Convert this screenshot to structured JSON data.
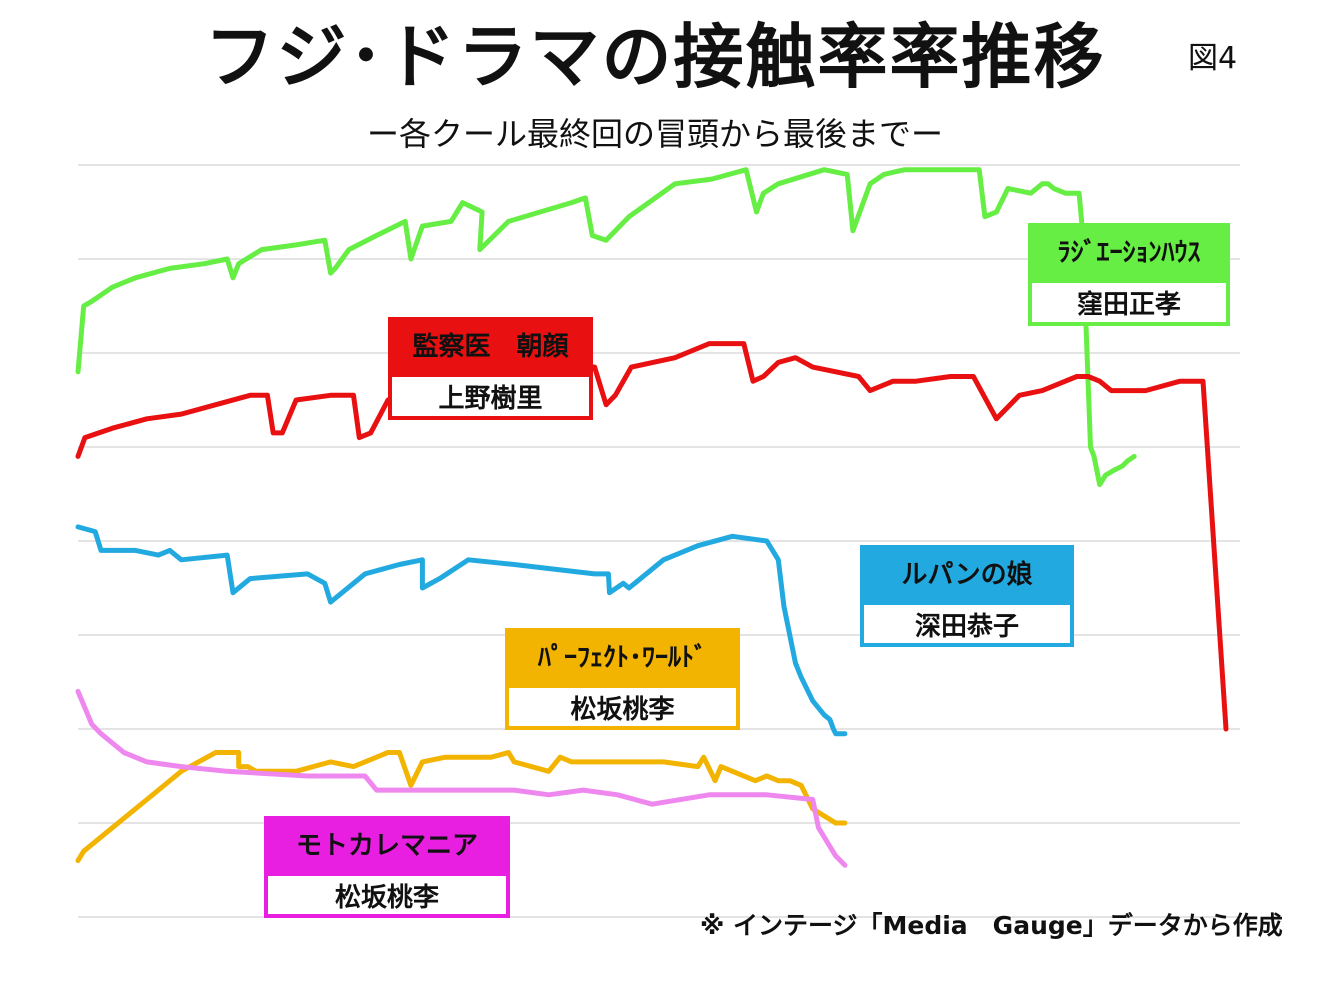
{
  "title": "フジ･ドラマの接触率率推移",
  "subtitle": "ー各クール最終回の冒頭から最後までー",
  "figure_label": "図4",
  "source_note": "※ インテージ「Media　Gauge」データから作成",
  "colors": {
    "green": "#66ee44",
    "red": "#e81010",
    "blue": "#22aae0",
    "orange": "#f2b400",
    "pink": "#ee88ee",
    "magenta": "#e81ee0",
    "grid": "#dcdcdc"
  },
  "legend": {
    "green": {
      "show": "ﾗｼﾞｴｰｼｮﾝﾊｳｽ",
      "actor": "窪田正孝"
    },
    "red": {
      "show": "監察医　朝顔",
      "actor": "上野樹里"
    },
    "blue": {
      "show": "ルパンの娘",
      "actor": "深田恭子"
    },
    "orange": {
      "show": "ﾊﾟｰﾌｪｸﾄ･ﾜｰﾙﾄﾞ",
      "actor": "松坂桃李"
    },
    "pink": {
      "show": "モトカレマニア",
      "actor": "松坂桃李"
    }
  },
  "chart_data": {
    "type": "line",
    "title": "フジ･ドラマの接触率率推移",
    "subtitle": "ー各クール最終回の冒頭から最後までー",
    "xlabel": "",
    "ylabel": "",
    "ylim": [
      0,
      8
    ],
    "xlim": [
      0,
      1
    ],
    "grid": true,
    "legend_placement": "inline",
    "series": [
      {
        "name": "ﾗｼﾞｴｰｼｮﾝﾊｳｽ",
        "color": "#66ee44",
        "x": [
          0.0,
          0.005,
          0.012,
          0.03,
          0.05,
          0.08,
          0.11,
          0.13,
          0.135,
          0.14,
          0.16,
          0.19,
          0.215,
          0.22,
          0.224,
          0.236,
          0.26,
          0.285,
          0.29,
          0.3,
          0.325,
          0.335,
          0.352,
          0.35,
          0.375,
          0.43,
          0.442,
          0.448,
          0.46,
          0.48,
          0.52,
          0.552,
          0.582,
          0.591,
          0.597,
          0.61,
          0.65,
          0.67,
          0.675,
          0.69,
          0.702,
          0.72,
          0.75,
          0.76,
          0.785,
          0.79,
          0.8,
          0.81,
          0.83,
          0.84,
          0.845,
          0.85,
          0.86,
          0.872,
          0.875,
          0.882,
          0.885,
          0.89,
          0.895,
          0.902,
          0.91,
          0.914,
          0.92
        ],
        "y": [
          5.8,
          6.5,
          6.55,
          6.7,
          6.8,
          6.9,
          6.95,
          7.0,
          6.8,
          6.95,
          7.1,
          7.15,
          7.2,
          6.85,
          6.9,
          7.1,
          7.25,
          7.4,
          7.0,
          7.35,
          7.4,
          7.6,
          7.5,
          7.1,
          7.4,
          7.6,
          7.65,
          7.25,
          7.2,
          7.45,
          7.8,
          7.85,
          7.95,
          7.5,
          7.7,
          7.8,
          7.95,
          7.9,
          7.3,
          7.8,
          7.9,
          7.95,
          7.95,
          7.95,
          7.95,
          7.45,
          7.5,
          7.75,
          7.7,
          7.8,
          7.8,
          7.75,
          7.7,
          7.7,
          7.3,
          5.0,
          4.9,
          4.6,
          4.7,
          4.75,
          4.8,
          4.85,
          4.9
        ]
      },
      {
        "name": "監察医　朝顔",
        "color": "#e81010",
        "x": [
          0.0,
          0.006,
          0.03,
          0.06,
          0.09,
          0.12,
          0.15,
          0.165,
          0.17,
          0.178,
          0.19,
          0.22,
          0.24,
          0.245,
          0.255,
          0.27,
          0.29,
          0.33,
          0.37,
          0.38,
          0.384,
          0.392,
          0.41,
          0.45,
          0.46,
          0.468,
          0.482,
          0.52,
          0.53,
          0.55,
          0.58,
          0.588,
          0.597,
          0.61,
          0.625,
          0.64,
          0.68,
          0.68,
          0.69,
          0.71,
          0.73,
          0.76,
          0.78,
          0.8,
          0.82,
          0.84,
          0.86,
          0.87,
          0.88,
          0.89,
          0.9,
          0.93,
          0.96,
          0.98,
          1.0
        ],
        "y": [
          4.9,
          5.1,
          5.2,
          5.3,
          5.35,
          5.45,
          5.55,
          5.55,
          5.15,
          5.15,
          5.5,
          5.55,
          5.55,
          5.1,
          5.15,
          5.5,
          5.55,
          5.85,
          5.85,
          5.35,
          5.4,
          5.75,
          5.9,
          5.85,
          5.45,
          5.55,
          5.85,
          5.95,
          6.0,
          6.1,
          6.1,
          5.7,
          5.75,
          5.9,
          5.95,
          5.85,
          5.75,
          5.75,
          5.6,
          5.7,
          5.7,
          5.75,
          5.75,
          5.3,
          5.55,
          5.6,
          5.7,
          5.75,
          5.75,
          5.7,
          5.6,
          5.6,
          5.7,
          5.7,
          2.0
        ]
      },
      {
        "name": "ルパンの娘",
        "color": "#22aae0",
        "x": [
          0.0,
          0.015,
          0.02,
          0.05,
          0.07,
          0.08,
          0.09,
          0.13,
          0.135,
          0.15,
          0.2,
          0.215,
          0.22,
          0.25,
          0.28,
          0.3,
          0.3,
          0.315,
          0.34,
          0.38,
          0.45,
          0.462,
          0.463,
          0.475,
          0.48,
          0.51,
          0.54,
          0.57,
          0.6,
          0.61,
          0.615,
          0.625,
          0.63,
          0.64,
          0.65,
          0.655,
          0.658,
          0.66,
          0.665,
          0.668
        ],
        "y": [
          4.15,
          4.1,
          3.9,
          3.9,
          3.85,
          3.9,
          3.8,
          3.85,
          3.45,
          3.6,
          3.65,
          3.55,
          3.35,
          3.65,
          3.75,
          3.8,
          3.5,
          3.6,
          3.8,
          3.75,
          3.65,
          3.65,
          3.45,
          3.55,
          3.5,
          3.8,
          3.95,
          4.05,
          4.0,
          3.8,
          3.3,
          2.7,
          2.55,
          2.3,
          2.15,
          2.1,
          2.0,
          1.95,
          1.95,
          1.95
        ]
      },
      {
        "name": "ﾊﾟｰﾌｪｸﾄ･ﾜｰﾙﾄﾞ",
        "color": "#f2b400",
        "x": [
          0.0,
          0.005,
          0.03,
          0.06,
          0.09,
          0.12,
          0.14,
          0.14,
          0.148,
          0.155,
          0.19,
          0.22,
          0.24,
          0.25,
          0.27,
          0.28,
          0.29,
          0.3,
          0.3,
          0.32,
          0.36,
          0.375,
          0.38,
          0.41,
          0.42,
          0.43,
          0.48,
          0.51,
          0.54,
          0.545,
          0.555,
          0.56,
          0.59,
          0.6,
          0.61,
          0.62,
          0.63,
          0.64,
          0.66,
          0.668
        ],
        "y": [
          0.6,
          0.7,
          0.95,
          1.25,
          1.55,
          1.75,
          1.75,
          1.6,
          1.6,
          1.55,
          1.55,
          1.65,
          1.6,
          1.65,
          1.75,
          1.75,
          1.4,
          1.65,
          1.65,
          1.7,
          1.7,
          1.75,
          1.65,
          1.55,
          1.7,
          1.65,
          1.65,
          1.65,
          1.6,
          1.7,
          1.45,
          1.6,
          1.45,
          1.5,
          1.45,
          1.45,
          1.4,
          1.15,
          1.0,
          1.0
        ]
      },
      {
        "name": "モトカレマニア",
        "color": "#ee88ee",
        "x": [
          0.0,
          0.012,
          0.02,
          0.04,
          0.06,
          0.09,
          0.13,
          0.2,
          0.25,
          0.26,
          0.32,
          0.38,
          0.41,
          0.44,
          0.47,
          0.5,
          0.55,
          0.6,
          0.64,
          0.645,
          0.655,
          0.66,
          0.668
        ],
        "y": [
          2.4,
          2.05,
          1.95,
          1.75,
          1.65,
          1.6,
          1.55,
          1.5,
          1.5,
          1.35,
          1.35,
          1.35,
          1.3,
          1.35,
          1.3,
          1.2,
          1.3,
          1.3,
          1.25,
          0.95,
          0.75,
          0.65,
          0.55
        ]
      }
    ]
  }
}
